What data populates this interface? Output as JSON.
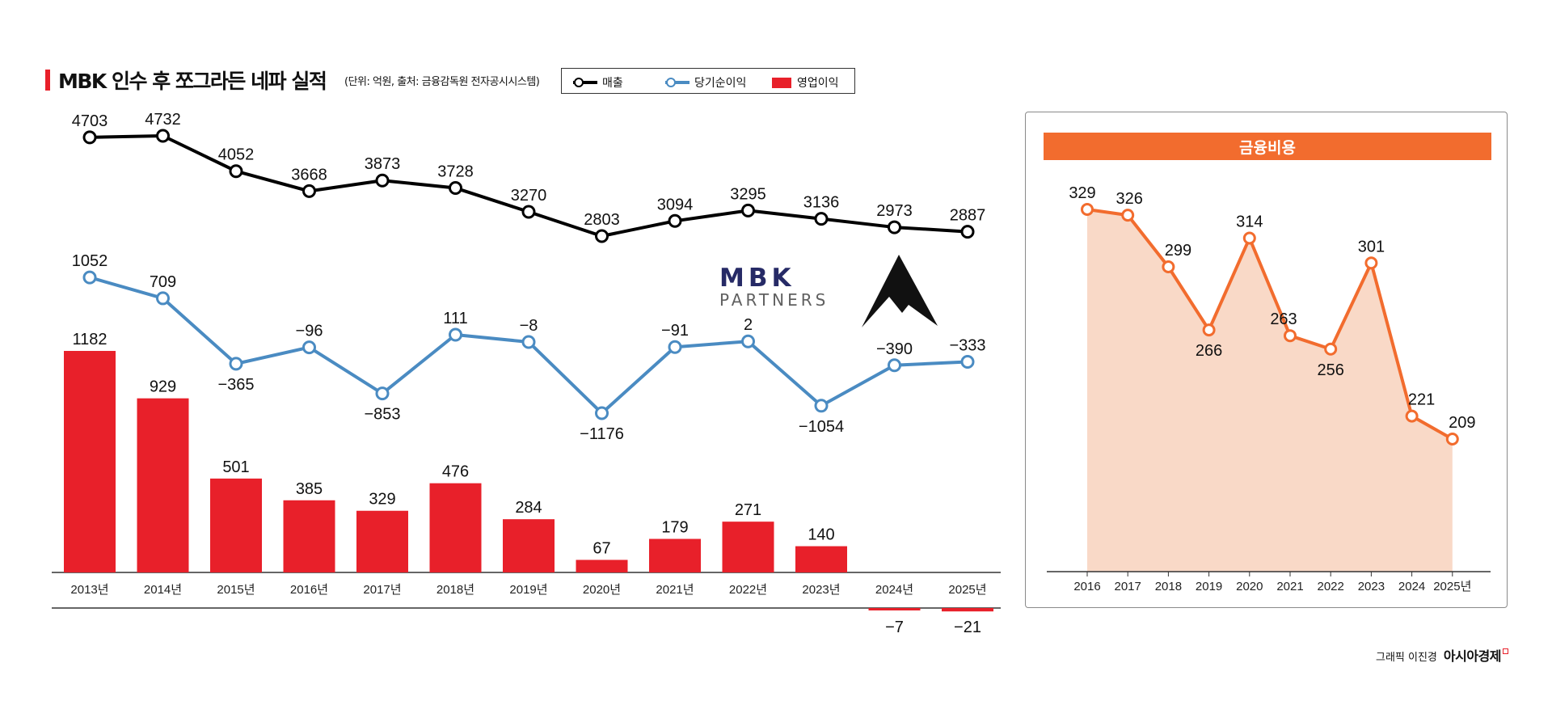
{
  "header": {
    "title": "MBK 인수 후 쪼그라든 네파 실적",
    "unit_note": "(단위: 억원, 출처: 금융감독원 전자공시시스템)"
  },
  "legend": {
    "revenue": "매출",
    "net_income": "당기순이익",
    "operating_income": "영업이익"
  },
  "logos": {
    "mbk_line1": "MBK",
    "mbk_line2": "PARTNERS",
    "nepa": "NEPA"
  },
  "panel": {
    "title": "금융비용"
  },
  "credit": {
    "author": "그래픽 이진경",
    "brand": "아시아경제"
  },
  "colors": {
    "revenue": "#000000",
    "net_income": "#4a8bc2",
    "operating_income": "#e8202a",
    "finance_cost": "#f26c2e",
    "finance_cost_fill": "#f9d9c7"
  },
  "chart_data": [
    {
      "type": "line",
      "categories": [
        "2013년",
        "2014년",
        "2015년",
        "2016년",
        "2017년",
        "2018년",
        "2019년",
        "2020년",
        "2021년",
        "2022년",
        "2023년",
        "2024년",
        "2025년"
      ],
      "series": [
        {
          "name": "매출",
          "type": "line",
          "values": [
            4703,
            4732,
            4052,
            3668,
            3873,
            3728,
            3270,
            2803,
            3094,
            3295,
            3136,
            2973,
            2887
          ]
        },
        {
          "name": "당기순이익",
          "type": "line",
          "values": [
            1052,
            709,
            -365,
            -96,
            -853,
            111,
            -8,
            -1176,
            -91,
            2,
            -1054,
            -390,
            -333
          ]
        },
        {
          "name": "영업이익",
          "type": "bar",
          "values": [
            1182,
            929,
            501,
            385,
            329,
            476,
            284,
            67,
            179,
            271,
            140,
            -7,
            -21
          ]
        }
      ],
      "title": "MBK 인수 후 쪼그라든 네파 실적",
      "legend": "top"
    },
    {
      "type": "area",
      "title": "금융비용",
      "x": [
        "2016",
        "2017",
        "2018",
        "2019",
        "2020",
        "2021",
        "2022",
        "2023",
        "2024",
        "2025년"
      ],
      "values": [
        329,
        326,
        299,
        266,
        314,
        263,
        256,
        301,
        221,
        209
      ]
    }
  ]
}
